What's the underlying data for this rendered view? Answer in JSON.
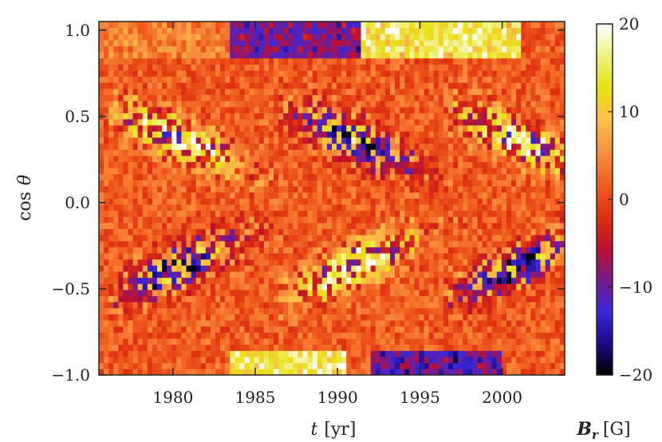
{
  "chart_data": {
    "type": "heatmap",
    "title": "",
    "xlabel": {
      "var": "t",
      "unit": "[yr]"
    },
    "ylabel": {
      "text": "cos",
      "var": "θ"
    },
    "xlim": [
      1975.5,
      2003.8
    ],
    "ylim": [
      -1.0,
      1.05
    ],
    "x_ticks": [
      1980,
      1985,
      1990,
      1995,
      2000
    ],
    "y_ticks": [
      {
        "value": 1.0,
        "label": "1.0"
      },
      {
        "value": 0.5,
        "label": "0.5"
      },
      {
        "value": 0.0,
        "label": "0.0"
      },
      {
        "value": -0.5,
        "label": "−0.5"
      },
      {
        "value": -1.0,
        "label": "−1.0"
      }
    ],
    "colorbar": {
      "label": {
        "var": "B",
        "sub": "r",
        "unit": "[G]"
      },
      "range": [
        -20,
        20
      ],
      "ticks": [
        {
          "value": 20,
          "label": "20"
        },
        {
          "value": 10,
          "label": "10"
        },
        {
          "value": 0,
          "label": "0"
        },
        {
          "value": -10,
          "label": "−10"
        },
        {
          "value": -20,
          "label": "−20"
        }
      ],
      "colors": [
        "#000000",
        "#1a0a8a",
        "#3a28d8",
        "#7a1a8a",
        "#c0102a",
        "#e03010",
        "#f06020",
        "#f89040",
        "#fcc048",
        "#e8e010",
        "#f0f080",
        "#ffffff"
      ]
    },
    "features": [
      {
        "name": "north-pole-cycle21",
        "t": [
          1975.5,
          1983.5
        ],
        "mu": [
          0.85,
          1.05
        ],
        "Br": 3
      },
      {
        "name": "north-pole-cycle22",
        "t": [
          1983.5,
          1991.5
        ],
        "mu": [
          0.85,
          1.05
        ],
        "Br": -12
      },
      {
        "name": "north-pole-cycle23",
        "t": [
          1991.5,
          2001.0
        ],
        "mu": [
          0.85,
          1.05
        ],
        "Br": 14
      },
      {
        "name": "south-pole-cycle22",
        "t": [
          1983.5,
          1990.5
        ],
        "mu": [
          -1.0,
          -0.85
        ],
        "Br": 15
      },
      {
        "name": "south-pole-cycle23",
        "t": [
          1992.0,
          2000.0
        ],
        "mu": [
          -1.0,
          -0.85
        ],
        "Br": -14
      }
    ]
  }
}
